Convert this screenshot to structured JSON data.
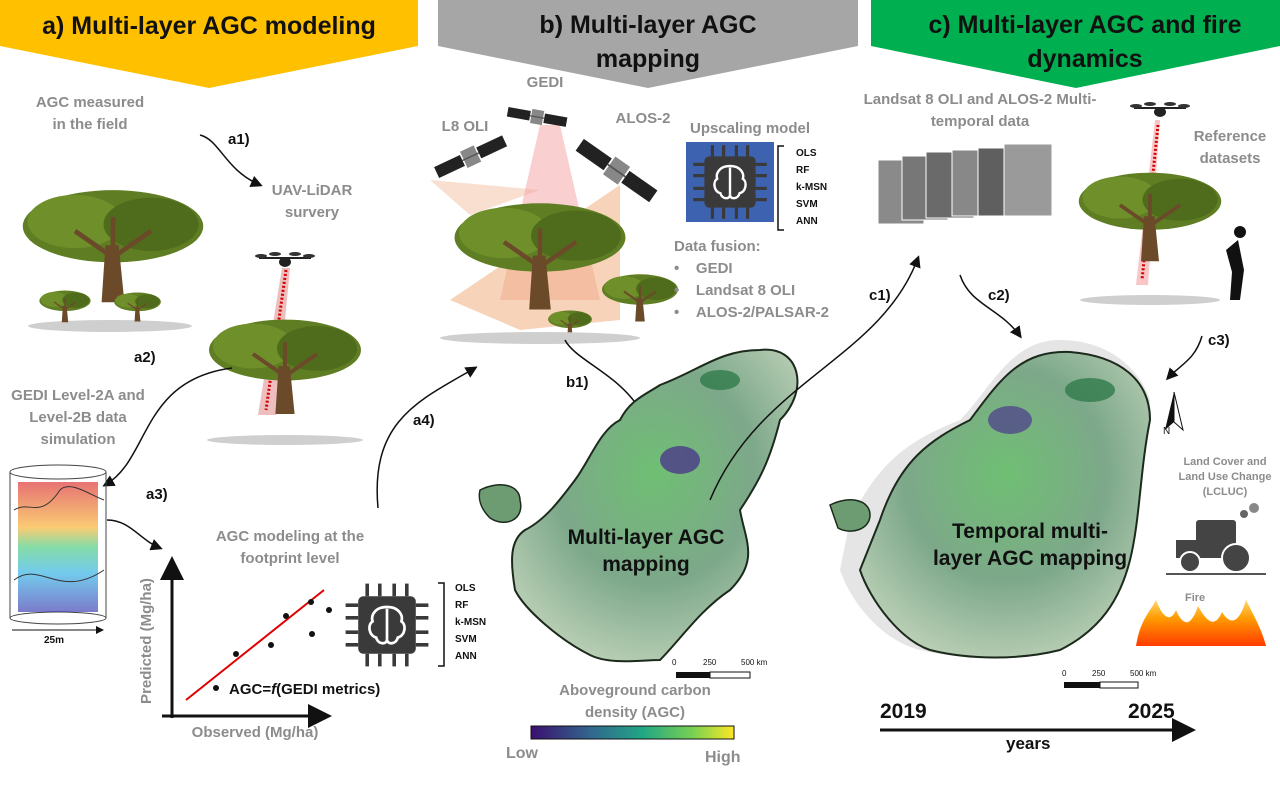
{
  "banners": {
    "a": "a) Multi-layer AGC modeling",
    "b": "b) Multi-layer AGC mapping",
    "c": "c) Multi-layer AGC and fire dynamics"
  },
  "colors": {
    "banner_a": "#FFC000",
    "banner_b": "#A6A6A6",
    "banner_c": "#00B050",
    "grey_text": "#8C8C8C",
    "fit_line": "#E00000"
  },
  "panel_a": {
    "field": "AGC measured in the field",
    "step_a1": "a1)",
    "uav": "UAV-LiDAR survery",
    "step_a2": "a2)",
    "gedi_sim": "GEDI Level-2A and Level-2B data simulation",
    "step_a3": "a3)",
    "scale_bar": "25m",
    "footprint": "AGC modeling at the footprint level",
    "step_a4": "a4)",
    "y_label": "Predicted (Mg/ha)",
    "x_label": "Observed (Mg/ha)",
    "equation_prefix": "AGC=",
    "equation_f": "f",
    "equation_suffix": "(GEDI metrics)",
    "models": [
      "OLS",
      "RF",
      "k-MSN",
      "SVM",
      "ANN"
    ]
  },
  "panel_b": {
    "gedi": "GEDI",
    "l8": "L8 OLI",
    "alos": "ALOS-2",
    "upscaling": "Upscaling model",
    "models": [
      "OLS",
      "RF",
      "k-MSN",
      "SVM",
      "ANN"
    ],
    "fusion_title": "Data fusion:",
    "fusion_items": [
      "GEDI",
      "Landsat 8 OLI",
      "ALOS-2/PALSAR-2"
    ],
    "step_b1": "b1)",
    "map_label": "Multi-layer AGC mapping",
    "scale_ticks": [
      "0",
      "250",
      "500 km"
    ],
    "legend_title": "Aboveground carbon density (AGC)",
    "legend_low": "Low",
    "legend_high": "High"
  },
  "panel_c": {
    "multitemporal": "Landsat 8 OLI and ALOS-2 Multi-temporal data",
    "reference": "Reference datasets",
    "step_c1": "c1)",
    "step_c2": "c2)",
    "step_c3": "c3)",
    "north": "N",
    "lcluc": "Land Cover and Land Use Change (LCLUC)",
    "fire": "Fire",
    "map_label": "Temporal multi-layer AGC mapping",
    "scale_ticks": [
      "0",
      "250",
      "500 km"
    ],
    "year_start": "2019",
    "year_end": "2025",
    "years_label": "years"
  }
}
